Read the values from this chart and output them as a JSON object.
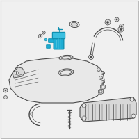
{
  "bg_color": "#f0f0f0",
  "line_color": "#4a4a4a",
  "highlight_color": "#1eadd4",
  "highlight_color2": "#3bbfe0",
  "highlight_dark": "#1090b0",
  "border_color": "#bbbbbb",
  "tank_fill": "#e8e8e8",
  "part_fill": "#d8d8d8",
  "fig_width": 2.0,
  "fig_height": 2.0,
  "dpi": 100
}
